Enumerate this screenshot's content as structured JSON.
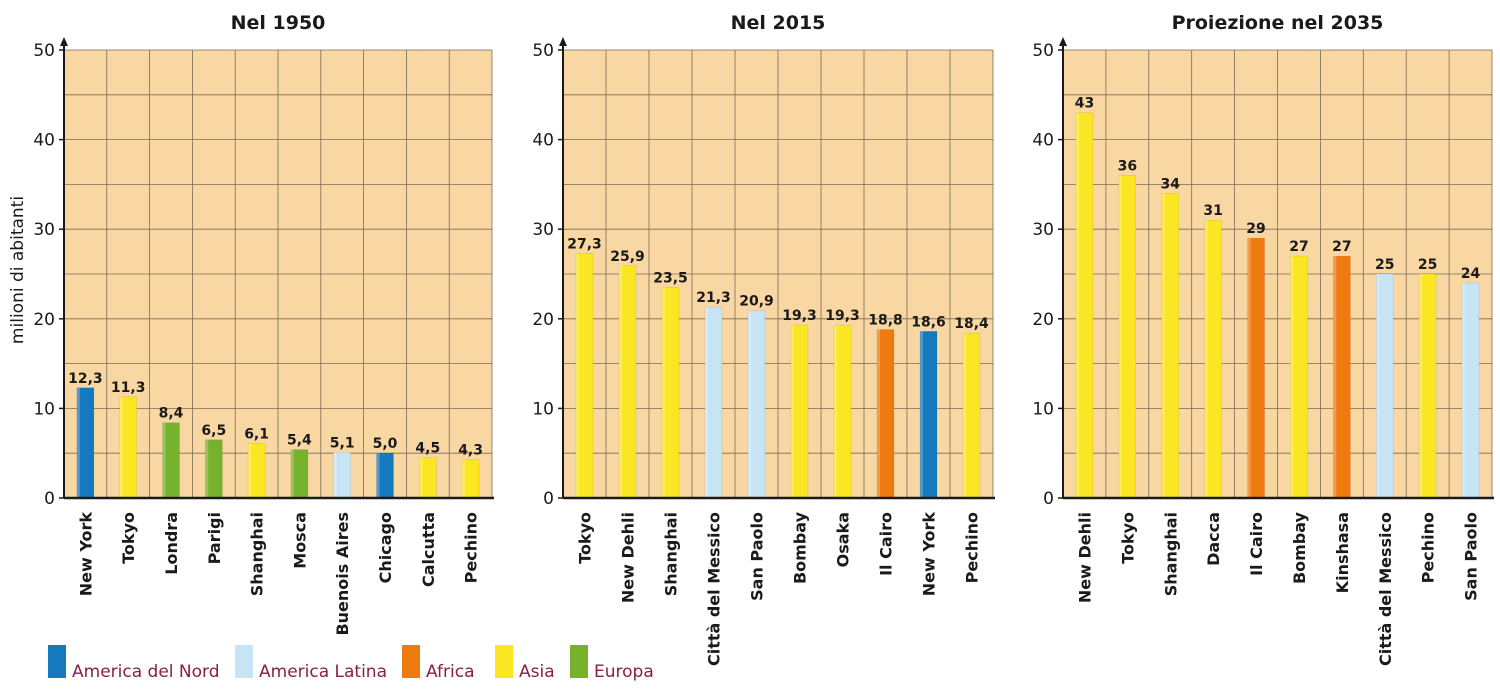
{
  "ylabel": "milioni di abitanti",
  "legend": [
    {
      "key": "nord",
      "label": "America del Nord",
      "color": "#1579bf"
    },
    {
      "key": "latina",
      "label": "America Latina",
      "color": "#c7e4f5"
    },
    {
      "key": "africa",
      "label": "Africa",
      "color": "#ef7b10"
    },
    {
      "key": "asia",
      "label": "Asia",
      "color": "#fbe623"
    },
    {
      "key": "europa",
      "label": "Europa",
      "color": "#76b22c"
    }
  ],
  "colors": {
    "plot_bg": "#f9d7a3",
    "grid": "#7a6a55",
    "axis": "#1a1a1a",
    "legend_text": "#8a1d4a"
  },
  "chart_data": [
    {
      "type": "bar",
      "title": "Nel 1950",
      "ylabel": "milioni di abitanti",
      "ylim": [
        0,
        50
      ],
      "yticks": [
        0,
        10,
        20,
        30,
        40,
        50
      ],
      "categories": [
        "New York",
        "Tokyo",
        "Londra",
        "Parigi",
        "Shanghai",
        "Mosca",
        "Buenois Aires",
        "Chicago",
        "Calcutta",
        "Pechino"
      ],
      "values": [
        12.3,
        11.3,
        8.4,
        6.5,
        6.1,
        5.4,
        5.1,
        5.0,
        4.5,
        4.3
      ],
      "labels": [
        "12,3",
        "11,3",
        "8,4",
        "6,5",
        "6,1",
        "5,4",
        "5,1",
        "5,0",
        "4,5",
        "4,3"
      ],
      "regions": [
        "nord",
        "asia",
        "europa",
        "europa",
        "asia",
        "europa",
        "latina",
        "nord",
        "asia",
        "asia"
      ],
      "grid": true
    },
    {
      "type": "bar",
      "title": "Nel 2015",
      "ylim": [
        0,
        50
      ],
      "yticks": [
        0,
        10,
        20,
        30,
        40,
        50
      ],
      "categories": [
        "Tokyo",
        "New Dehli",
        "Shanghai",
        "Città del Messico",
        "San Paolo",
        "Bombay",
        "Osaka",
        "Il Cairo",
        "New York",
        "Pechino"
      ],
      "values": [
        27.3,
        25.9,
        23.5,
        21.3,
        20.9,
        19.3,
        19.3,
        18.8,
        18.6,
        18.4
      ],
      "labels": [
        "27,3",
        "25,9",
        "23,5",
        "21,3",
        "20,9",
        "19,3",
        "19,3",
        "18,8",
        "18,6",
        "18,4"
      ],
      "regions": [
        "asia",
        "asia",
        "asia",
        "latina",
        "latina",
        "asia",
        "asia",
        "africa",
        "nord",
        "asia"
      ],
      "grid": true
    },
    {
      "type": "bar",
      "title": "Proiezione nel 2035",
      "ylim": [
        0,
        50
      ],
      "yticks": [
        0,
        10,
        20,
        30,
        40,
        50
      ],
      "categories": [
        "New Dehli",
        "Tokyo",
        "Shanghai",
        "Dacca",
        "Il Cairo",
        "Bombay",
        "Kinshasa",
        "Città del Messico",
        "Pechino",
        "San Paolo"
      ],
      "values": [
        43,
        36,
        34,
        31,
        29,
        27,
        27,
        25,
        25,
        24
      ],
      "labels": [
        "43",
        "36",
        "34",
        "31",
        "29",
        "27",
        "27",
        "25",
        "25",
        "24"
      ],
      "regions": [
        "asia",
        "asia",
        "asia",
        "asia",
        "africa",
        "asia",
        "africa",
        "latina",
        "asia",
        "latina"
      ],
      "grid": true
    }
  ]
}
